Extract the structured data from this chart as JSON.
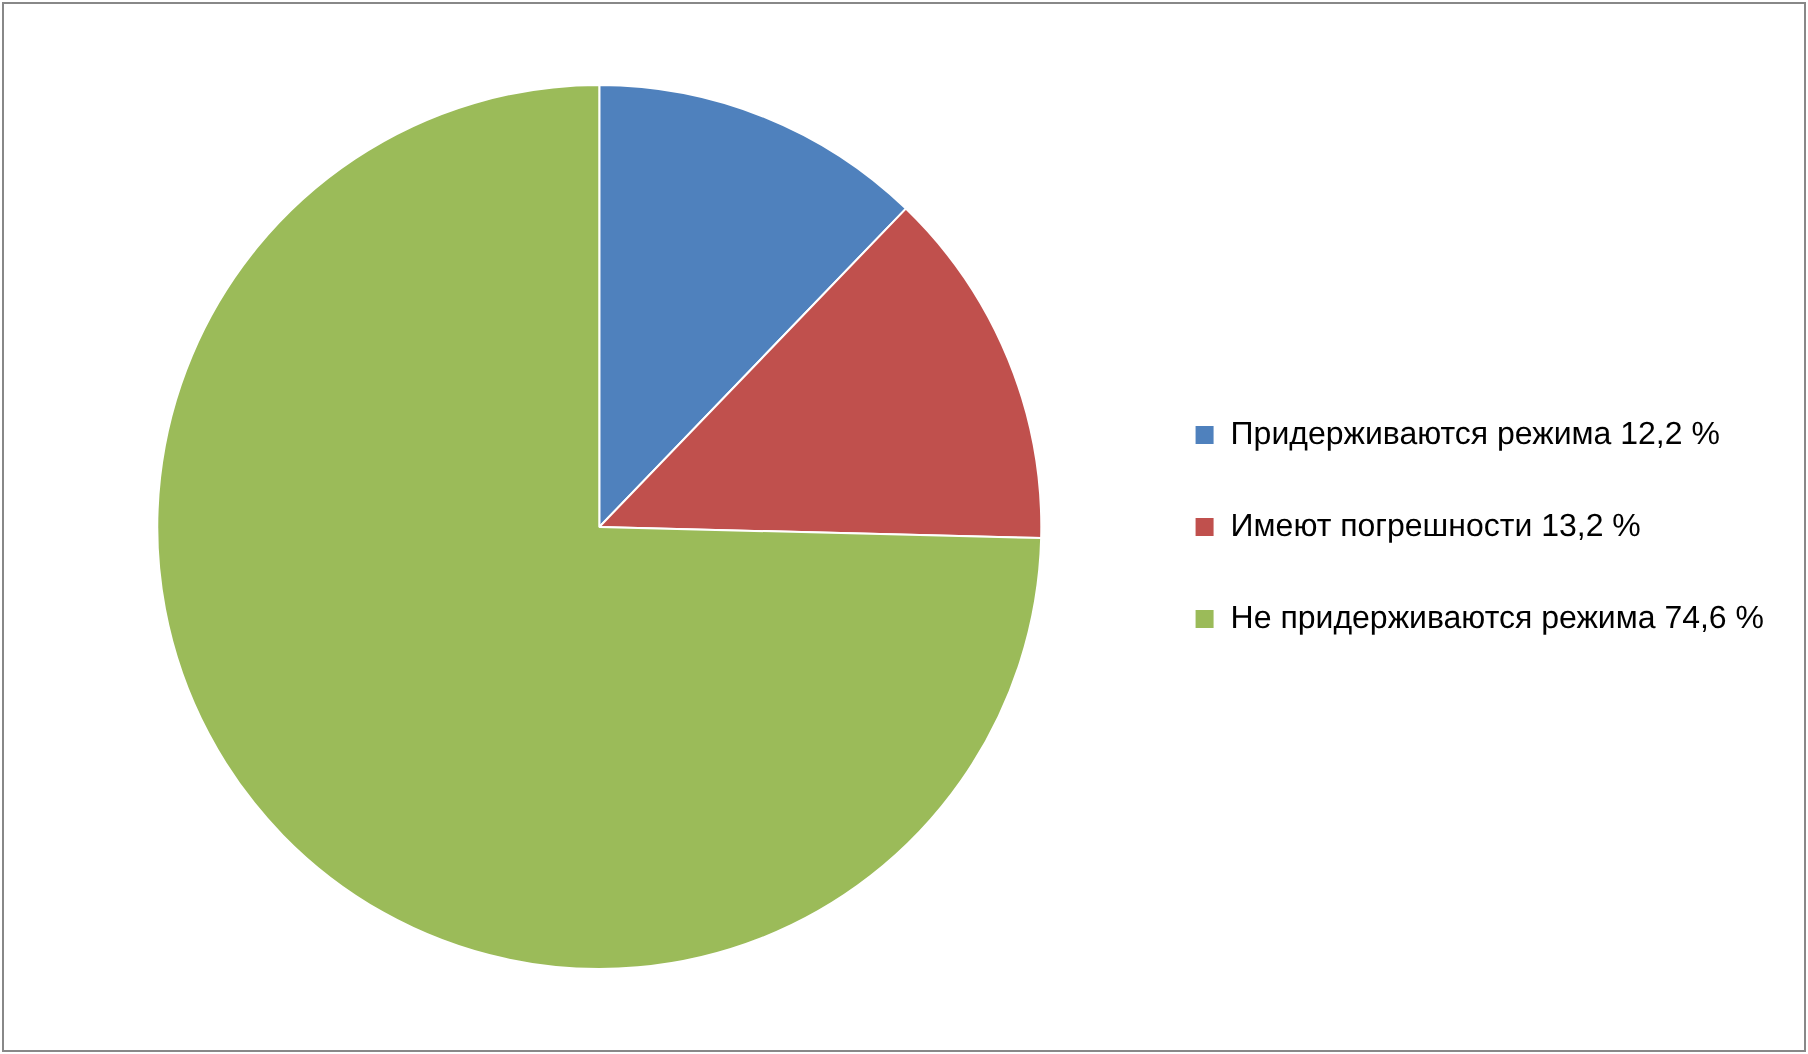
{
  "chart_data": {
    "type": "pie",
    "categories": [
      "Придерживаются режима 12,2 %",
      "Имеют погрешности 13,2 %",
      "Не придерживаются режима 74,6 %"
    ],
    "values": [
      12.2,
      13.2,
      74.6
    ],
    "colors": [
      "#4f81bd",
      "#c0504d",
      "#9bbb59"
    ],
    "legend": "right"
  }
}
